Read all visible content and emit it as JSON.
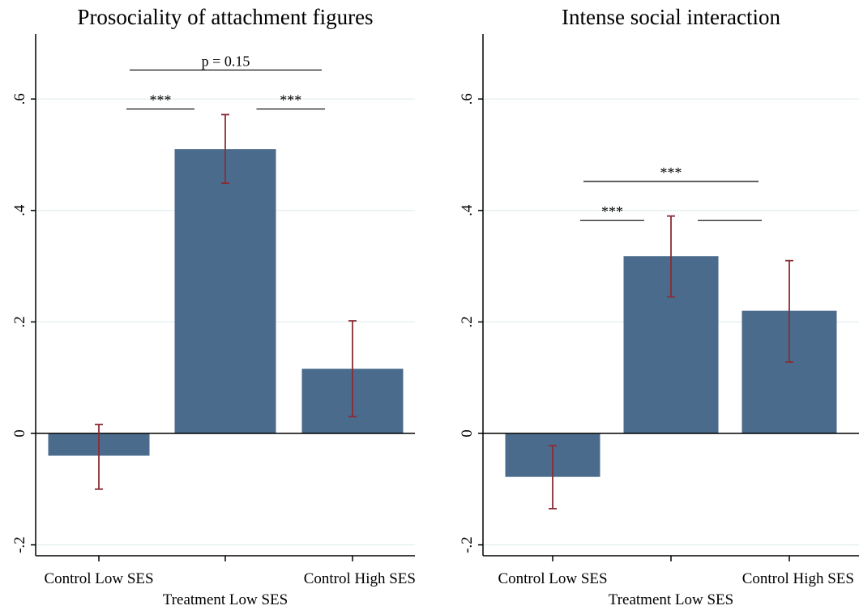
{
  "colors": {
    "bar": "#4a6b8c",
    "error_bar": "#8b2c34",
    "grid": "#e8f0f0",
    "axis": "#000000"
  },
  "chart_data": [
    {
      "type": "bar",
      "title": "Prosociality of attachment figures",
      "categories": [
        "Control Low SES",
        "Treatment Low SES",
        "Control High SES"
      ],
      "values": [
        -0.04,
        0.51,
        0.116
      ],
      "ci_low": [
        -0.1,
        0.449,
        0.03
      ],
      "ci_high": [
        0.016,
        0.572,
        0.202
      ],
      "yticks": [
        {
          "value": -0.2,
          "label": "-.2"
        },
        {
          "value": 0,
          "label": "0"
        },
        {
          "value": 0.2,
          "label": ".2"
        },
        {
          "value": 0.4,
          "label": ".4"
        },
        {
          "value": 0.6,
          "label": ".6"
        }
      ],
      "ylim": [
        -0.22,
        0.72
      ],
      "grid": true,
      "annotations": [
        {
          "from": 0,
          "to": 1,
          "y": 0.582,
          "label": "***"
        },
        {
          "from": 1,
          "to": 2,
          "y": 0.582,
          "label": "***"
        },
        {
          "from": 0,
          "to": 2,
          "y": 0.652,
          "label": "p = 0.15"
        }
      ]
    },
    {
      "type": "bar",
      "title": "Intense social interaction",
      "categories": [
        "Control Low SES",
        "Treatment Low SES",
        "Control High SES"
      ],
      "values": [
        -0.078,
        0.318,
        0.22
      ],
      "ci_low": [
        -0.135,
        0.245,
        0.128
      ],
      "ci_high": [
        -0.022,
        0.39,
        0.31
      ],
      "yticks": [
        {
          "value": -0.2,
          "label": "-.2"
        },
        {
          "value": 0,
          "label": "0"
        },
        {
          "value": 0.2,
          "label": ".2"
        },
        {
          "value": 0.4,
          "label": ".4"
        },
        {
          "value": 0.6,
          "label": ".6"
        }
      ],
      "ylim": [
        -0.22,
        0.72
      ],
      "grid": true,
      "annotations": [
        {
          "from": 0,
          "to": 1,
          "y": 0.382,
          "label": "***"
        },
        {
          "from": 1,
          "to": 2,
          "y": 0.382,
          "label": ""
        },
        {
          "from": 0,
          "to": 2,
          "y": 0.452,
          "label": "***"
        }
      ]
    }
  ]
}
